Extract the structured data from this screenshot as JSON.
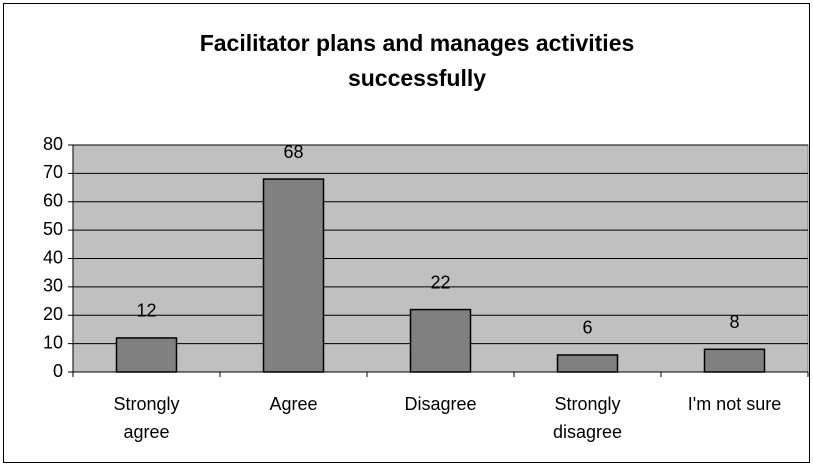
{
  "chart_data": {
    "type": "bar",
    "title": "Facilitator plans and manages activities successfully",
    "categories": [
      "Strongly agree",
      "Agree",
      "Disagree",
      "Strongly disagree",
      "I'm not sure"
    ],
    "values": [
      12,
      68,
      22,
      6,
      8
    ],
    "color": "#808080",
    "ylim": [
      0,
      80
    ],
    "yticks": [
      0,
      10,
      20,
      30,
      40,
      50,
      60,
      70,
      80
    ],
    "grid": true
  }
}
